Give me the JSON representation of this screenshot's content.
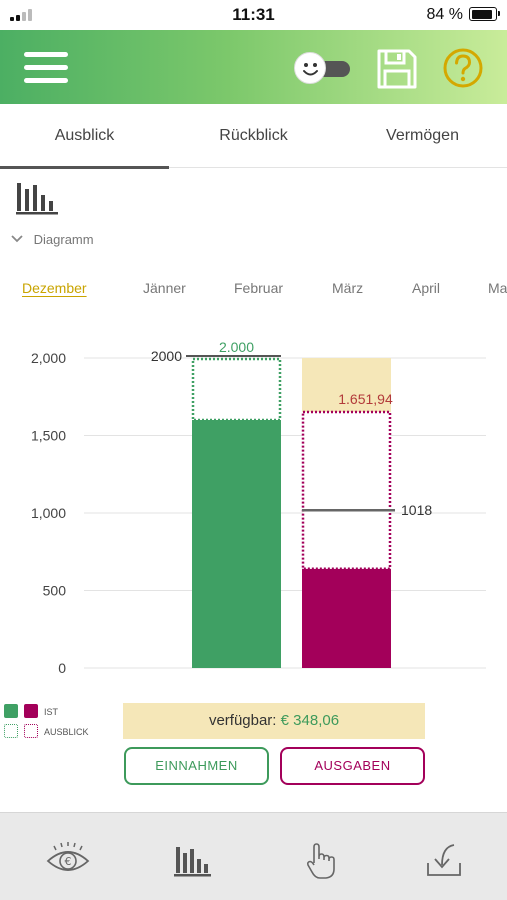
{
  "status_bar": {
    "time": "11:31",
    "battery_percent": "84 %"
  },
  "header": {
    "icons": [
      "menu-icon",
      "toggle-icon",
      "save-icon",
      "help-icon"
    ]
  },
  "tabs": [
    {
      "label": "Ausblick",
      "active": true
    },
    {
      "label": "Rückblick",
      "active": false
    },
    {
      "label": "Vermögen",
      "active": false
    }
  ],
  "section": {
    "toggle_label": "Diagramm"
  },
  "months": [
    {
      "label": "Dezember",
      "active": true
    },
    {
      "label": "Jänner",
      "active": false
    },
    {
      "label": "Februar",
      "active": false
    },
    {
      "label": "März",
      "active": false
    },
    {
      "label": "April",
      "active": false
    },
    {
      "label": "Ma",
      "active": false
    }
  ],
  "chart_data": {
    "type": "bar",
    "ylim": [
      0,
      2000
    ],
    "yticks": [
      "0",
      "500",
      "1,000",
      "1,500",
      "2,000"
    ],
    "colors": {
      "income": "#3fa064",
      "expense": "#a3005a",
      "budget": "#f5e7b8"
    },
    "income": {
      "ist": 1600,
      "ausblick": 2000,
      "ausblick_label": "2.000",
      "marker_value": 2000,
      "marker_label": "2000"
    },
    "expense": {
      "budget": 2000,
      "ist": 640,
      "ausblick": 1651.94,
      "ausblick_label": "1.651,94",
      "marker_value": 1018,
      "marker_label": "1018"
    }
  },
  "legend": {
    "ist": "IST",
    "ausblick": "AUSBLICK"
  },
  "summary": {
    "available_label": "verfügbar:",
    "available_value": "€ 348,06"
  },
  "buttons": {
    "income": "EINNAHMEN",
    "expense": "AUSGABEN"
  },
  "bottom_nav": [
    "eye-euro-icon",
    "bar-chart-icon",
    "hand-pointer-icon",
    "download-tray-icon"
  ]
}
